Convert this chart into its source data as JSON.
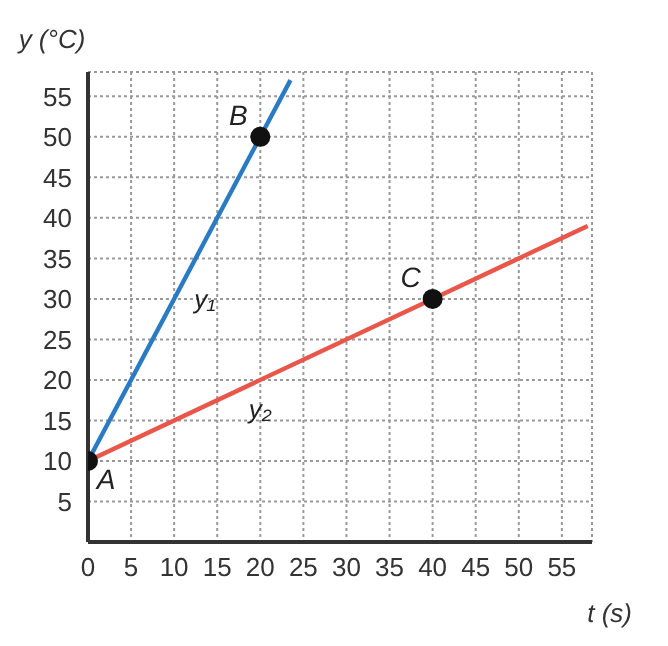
{
  "chart_data": {
    "type": "line",
    "xlabel": "t (s)",
    "ylabel": "y (°C)",
    "xlim": [
      0,
      58.5
    ],
    "ylim": [
      0,
      58
    ],
    "xticks": [
      0,
      5,
      10,
      15,
      20,
      25,
      30,
      35,
      40,
      45,
      50,
      55
    ],
    "yticks": [
      5,
      10,
      15,
      20,
      25,
      30,
      35,
      40,
      45,
      50,
      55
    ],
    "grid": true,
    "marker": "none",
    "line_style": "solid",
    "series": [
      {
        "name": "y₁",
        "color": "#2a7bc4",
        "x": [
          0,
          20,
          23.5
        ],
        "values": [
          10,
          50,
          57
        ]
      },
      {
        "name": "y₂",
        "color": "#e8574a",
        "x": [
          0,
          40,
          58
        ],
        "values": [
          10,
          30,
          39
        ]
      },
      {
        "type": "scatter",
        "color": "#111111",
        "x": [
          0,
          20,
          40
        ],
        "values": [
          10,
          50,
          30
        ],
        "marker": "circle"
      }
    ],
    "annotations": [
      {
        "text": "A",
        "x": 0,
        "y": 10
      },
      {
        "text": "B",
        "x": 20,
        "y": 50
      },
      {
        "text": "C",
        "x": 40,
        "y": 30
      }
    ]
  }
}
